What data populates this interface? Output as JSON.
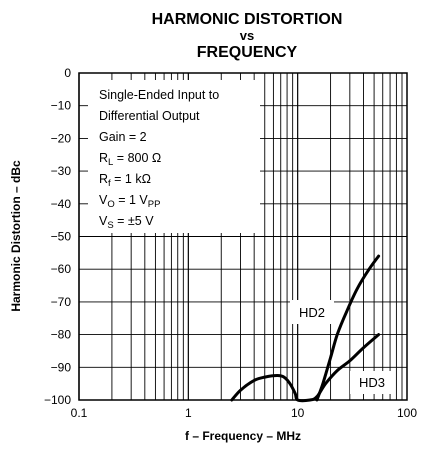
{
  "chart_data": {
    "type": "line",
    "title_line1": "HARMONIC DISTORTION",
    "title_line2": "vs",
    "title_line3": "FREQUENCY",
    "xlabel": "f – Frequency – MHz",
    "ylabel": "Harmonic Distortion – dBc",
    "x_scale": "log",
    "xlim": [
      0.1,
      100
    ],
    "ylim": [
      -100,
      0
    ],
    "x_ticks": [
      0.1,
      1,
      10,
      100
    ],
    "x_tick_labels": [
      "0.1",
      "1",
      "10",
      "100"
    ],
    "y_ticks": [
      0,
      -10,
      -20,
      -30,
      -40,
      -50,
      -60,
      -70,
      -80,
      -90,
      -100
    ],
    "y_tick_labels": [
      "0",
      "−10",
      "−20",
      "−30",
      "−40",
      "−50",
      "−60",
      "−70",
      "−80",
      "−90",
      "−100"
    ],
    "grid": true,
    "conditions": {
      "line1": "Single-Ended Input to",
      "line2": "Differential Output",
      "line3": "Gain = 2",
      "rl_main": "R",
      "rl_sub": "L",
      "rl_value": " = 800 Ω",
      "rf_main": "R",
      "rf_sub": "f",
      "rf_value": " = 1 kΩ",
      "vo_main": "V",
      "vo_sub": "O",
      "vo_value": " = 1 V",
      "vo_unit_sub": "PP",
      "vs_main": "V",
      "vs_sub": "S",
      "vs_value": " = ±5 V"
    },
    "series": [
      {
        "name": "HD2",
        "color": "#000000",
        "points": [
          [
            15,
            -100
          ],
          [
            17,
            -95
          ],
          [
            20,
            -87
          ],
          [
            23,
            -80
          ],
          [
            28,
            -73
          ],
          [
            35,
            -66
          ],
          [
            45,
            -60
          ],
          [
            55,
            -56
          ]
        ]
      },
      {
        "name": "HD3",
        "color": "#000000",
        "points": [
          [
            2.5,
            -100
          ],
          [
            3,
            -97
          ],
          [
            4,
            -94
          ],
          [
            5,
            -93
          ],
          [
            6.5,
            -92.5
          ],
          [
            7.5,
            -93
          ],
          [
            8.5,
            -95
          ],
          [
            9.5,
            -98
          ],
          [
            10,
            -100
          ],
          [
            13,
            -100
          ],
          [
            15,
            -99
          ],
          [
            18,
            -95
          ],
          [
            23,
            -91
          ],
          [
            30,
            -88
          ],
          [
            40,
            -84
          ],
          [
            55,
            -80
          ]
        ]
      }
    ]
  }
}
